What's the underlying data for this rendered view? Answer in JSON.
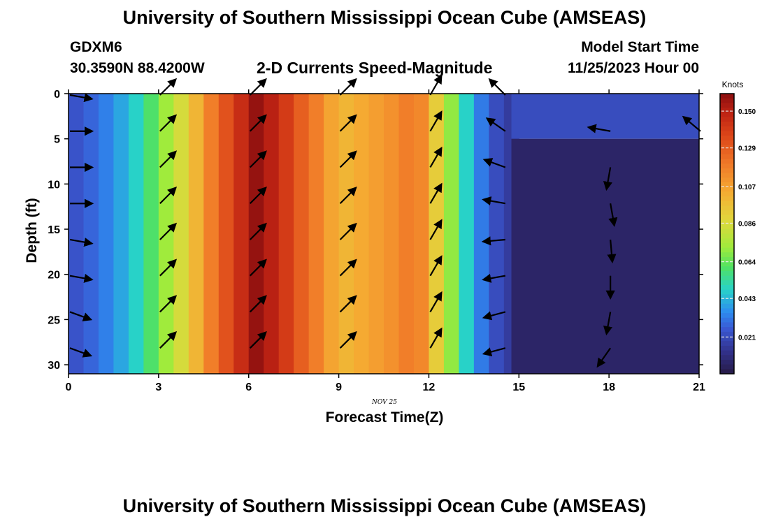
{
  "header": {
    "title": "University of Southern Mississippi Ocean Cube (AMSEAS)",
    "station": "GDXM6",
    "coordinates": "30.3590N  88.4200W",
    "plot_title": "2-D Currents Speed-Magnitude",
    "model_start_label": "Model Start Time",
    "model_start_value": "11/25/2023 Hour 00"
  },
  "footer": {
    "title": "University of Southern Mississippi Ocean Cube (AMSEAS)"
  },
  "chart_data": {
    "type": "heatmap",
    "title": "2-D Currents Speed-Magnitude",
    "xlabel": "Forecast Time(Z)",
    "ylabel": "Depth (ft)",
    "date_label": "NOV 25",
    "xlim": [
      0,
      21
    ],
    "ylim": [
      0,
      31
    ],
    "x_ticks": [
      0,
      3,
      6,
      9,
      12,
      15,
      18,
      21
    ],
    "y_ticks": [
      0,
      5,
      10,
      15,
      20,
      25,
      30
    ],
    "colorbar": {
      "unit": "Knots",
      "ticks": [
        "0.150",
        "0.129",
        "0.107",
        "0.086",
        "0.064",
        "0.043",
        "0.021"
      ],
      "range": [
        0.0,
        0.16
      ]
    },
    "column_times": [
      0.25,
      0.75,
      1.25,
      1.75,
      2.25,
      2.75,
      3.25,
      3.75,
      4.25,
      4.75,
      5.25,
      5.75,
      6.25,
      6.75,
      7.25,
      7.75,
      8.25,
      8.75,
      9.25,
      9.75,
      10.25,
      10.75,
      11.25,
      11.75,
      12.25,
      12.75,
      13.25,
      13.75,
      14.25,
      14.75
    ],
    "column_speeds": [
      0.024,
      0.028,
      0.033,
      0.04,
      0.048,
      0.06,
      0.072,
      0.085,
      0.1,
      0.118,
      0.132,
      0.145,
      0.158,
      0.15,
      0.14,
      0.128,
      0.118,
      0.106,
      0.1,
      0.104,
      0.108,
      0.112,
      0.118,
      0.115,
      0.092,
      0.07,
      0.048,
      0.032,
      0.022,
      0.016
    ],
    "late_region": {
      "x_start": 14.75,
      "x_end": 21,
      "upper_depth": 5,
      "upper_speed": 0.022,
      "lower_speed": 0.006
    },
    "vectors": {
      "times": [
        0,
        3,
        6,
        9,
        12,
        14.5,
        18,
        21
      ],
      "depths": [
        0,
        4,
        8,
        12,
        16,
        20,
        24,
        28
      ],
      "angles_deg": [
        [
          -10,
          0,
          0,
          0,
          -10,
          -10,
          -20,
          -20
        ],
        [
          45,
          45,
          45,
          45,
          45,
          45,
          45,
          45
        ],
        [
          45,
          45,
          45,
          45,
          45,
          45,
          45,
          45
        ],
        [
          45,
          45,
          45,
          45,
          45,
          45,
          45,
          45
        ],
        [
          60,
          60,
          60,
          60,
          60,
          60,
          60,
          60
        ],
        [
          135,
          145,
          160,
          170,
          185,
          190,
          195,
          195
        ],
        [
          null,
          170,
          260,
          280,
          275,
          270,
          260,
          235
        ],
        [
          null,
          140,
          null,
          null,
          null,
          null,
          null,
          null
        ]
      ]
    }
  }
}
